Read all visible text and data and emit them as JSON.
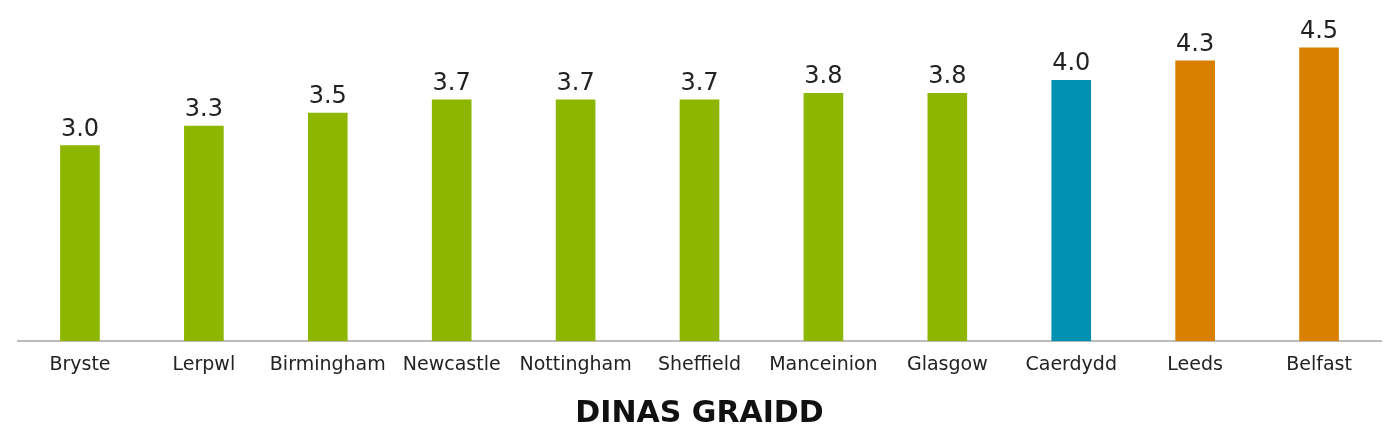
{
  "chart_data": {
    "type": "bar",
    "xlabel": "DINAS GRAIDD",
    "categories": [
      "Bryste",
      "Lerpwl",
      "Birmingham",
      "Newcastle",
      "Nottingham",
      "Sheffield",
      "Manceinion",
      "Glasgow",
      "Caerdydd",
      "Leeds",
      "Belfast"
    ],
    "values": [
      3.0,
      3.3,
      3.5,
      3.7,
      3.7,
      3.7,
      3.8,
      3.8,
      4.0,
      4.3,
      4.5
    ],
    "colors": [
      "#8db600",
      "#8db600",
      "#8db600",
      "#8db600",
      "#8db600",
      "#8db600",
      "#8db600",
      "#8db600",
      "#0090b0",
      "#d98000",
      "#d98000"
    ],
    "value_labels": [
      "3.0",
      "3.3",
      "3.5",
      "3.7",
      "3.7",
      "3.7",
      "3.8",
      "3.8",
      "4.0",
      "4.3",
      "4.5"
    ],
    "grid": false,
    "legend": false,
    "tick_labels": "x"
  }
}
